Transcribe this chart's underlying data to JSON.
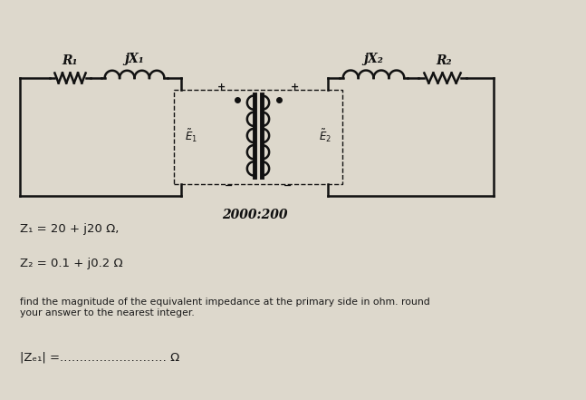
{
  "background_color": "#ddd8cc",
  "transformer_ratio": "2000:200",
  "z1_text": "Z₁ = 20 + j20 Ω,",
  "z2_text": "Z₂ = 0.1 + j0.2 Ω",
  "problem_text": "find the magnitude of the equivalent impedance at the primary side in ohm. round\nyour answer to the nearest integer.",
  "answer_text": "|Zₑ₁| =.‥‥‥‥‥‥‥‥‥‥‥‥‥ Ω",
  "R1_label": "R₁",
  "jX1_label": "jX₁",
  "jX2_label": "jX₂",
  "R2_label": "R₂",
  "E1_label": "E₁",
  "E2_label": "E₂",
  "text_color": "#1a1a1a",
  "circuit_color": "#111111",
  "font_size_labels": 10,
  "font_size_text": 9,
  "font_size_ratio": 10,
  "circuit_lw": 1.8
}
